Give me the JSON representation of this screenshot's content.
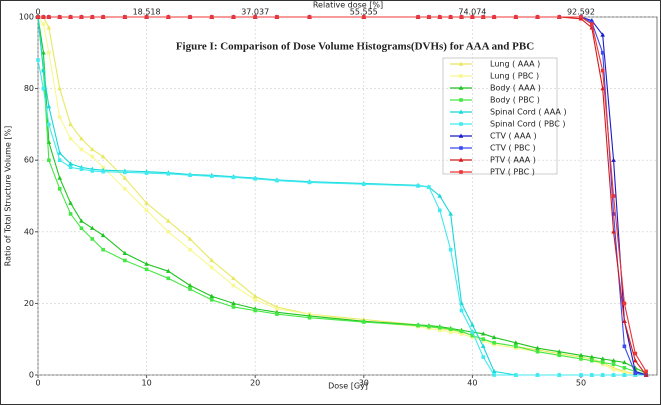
{
  "chart_data": {
    "type": "line",
    "title": "Figure I: Comparison of Dose Volume Histograms(DVHs) for AAA and PBC",
    "x_label": "Dose [Gy]",
    "y_label": "Ratio of Total Structure Volume [%]",
    "x2_label": "Relative dose [%]",
    "x": [
      0,
      0.5,
      1,
      2,
      3,
      4,
      5,
      6,
      8,
      10,
      12,
      14,
      16,
      18,
      20,
      22,
      25,
      30,
      35,
      36,
      37,
      38,
      39,
      40,
      41,
      42,
      44,
      46,
      48,
      50,
      51,
      52,
      53,
      54,
      55,
      56
    ],
    "xlim": [
      0,
      57
    ],
    "xticks": [
      0,
      10,
      20,
      30,
      40,
      50
    ],
    "x2lim": [
      0,
      105.555
    ],
    "x2ticks": [
      0,
      18.518,
      37.037,
      55.555,
      74.074,
      92.592
    ],
    "ylim": [
      0,
      100
    ],
    "yticks": [
      0,
      20,
      40,
      60,
      80,
      100
    ],
    "grid": true,
    "legend": "upper right",
    "series": [
      {
        "name": "Lung ( AAA )",
        "color": "#e8e860",
        "marker": "triangle",
        "values": [
          100,
          100,
          97,
          80,
          70,
          66,
          63,
          61,
          55,
          48,
          43,
          38,
          32,
          27,
          22,
          19,
          17,
          15.5,
          14,
          13.5,
          13,
          12.5,
          12,
          11,
          10,
          9,
          8,
          7,
          6,
          5,
          4.5,
          3.5,
          2,
          1,
          0.3,
          0
        ]
      },
      {
        "name": "Lung ( PBC )",
        "color": "#f8f890",
        "marker": "square",
        "values": [
          100,
          98,
          90,
          72,
          66,
          63,
          61,
          58,
          52,
          46,
          40,
          35,
          30,
          25,
          21,
          18.5,
          17,
          15,
          13.5,
          13,
          12.5,
          12,
          11.5,
          10.5,
          9.5,
          8.5,
          7.5,
          6.5,
          5.5,
          4.5,
          4,
          3,
          1.5,
          0.7,
          0.2,
          0
        ]
      },
      {
        "name": "Body ( AAA )",
        "color": "#22c422",
        "marker": "triangle",
        "values": [
          100,
          90,
          65,
          55,
          48,
          43,
          41,
          39,
          34,
          31,
          29,
          25,
          22,
          20,
          18.5,
          17.5,
          16.5,
          15,
          14,
          13.8,
          13.5,
          13,
          12.5,
          12,
          11.5,
          10.5,
          9,
          7.5,
          6.5,
          5.5,
          5,
          4.5,
          4,
          3.5,
          2,
          0.5
        ]
      },
      {
        "name": "Body ( PBC )",
        "color": "#44e844",
        "marker": "square",
        "values": [
          100,
          85,
          60,
          52,
          45,
          41,
          38,
          35,
          32,
          29.5,
          27,
          24,
          21,
          19,
          18,
          17,
          16,
          14.8,
          13.8,
          13.5,
          13.2,
          12.8,
          12.2,
          11,
          10,
          9,
          8,
          6.5,
          5.5,
          4.5,
          4,
          3.5,
          3,
          2,
          1,
          0.2
        ]
      },
      {
        "name": "Spinal Cord ( AAA )",
        "color": "#18d8d8",
        "marker": "triangle",
        "values": [
          100,
          85,
          75,
          62,
          59,
          58,
          57.5,
          57.2,
          57,
          56.8,
          56.5,
          56,
          55.8,
          55.4,
          55,
          54.5,
          54,
          53.5,
          53,
          52.5,
          50,
          45,
          20,
          14,
          8,
          1,
          0,
          0,
          0,
          0,
          0,
          0,
          0,
          0,
          0,
          0
        ]
      },
      {
        "name": "Spinal Cord ( PBC )",
        "color": "#40eaf0",
        "marker": "square",
        "values": [
          88,
          80,
          70,
          60,
          58,
          57.5,
          57,
          56.8,
          56.6,
          56.4,
          56.2,
          55.8,
          55.5,
          55.2,
          54.8,
          54.3,
          53.8,
          53.3,
          52.8,
          52.5,
          46,
          35,
          18,
          12,
          5,
          0,
          0,
          0,
          0,
          0,
          0,
          0,
          0,
          0,
          0,
          0
        ]
      },
      {
        "name": "CTV ( AAA )",
        "color": "#1a1ac8",
        "marker": "triangle",
        "values": [
          100,
          100,
          100,
          100,
          100,
          100,
          100,
          100,
          100,
          100,
          100,
          100,
          100,
          100,
          100,
          100,
          100,
          100,
          100,
          100,
          100,
          100,
          100,
          100,
          100,
          100,
          100,
          100,
          100,
          100,
          99,
          95,
          60,
          15,
          1,
          0
        ]
      },
      {
        "name": "CTV ( PBC )",
        "color": "#3a4aee",
        "marker": "square",
        "values": [
          100,
          100,
          100,
          100,
          100,
          100,
          100,
          100,
          100,
          100,
          100,
          100,
          100,
          100,
          100,
          100,
          100,
          100,
          100,
          100,
          100,
          100,
          100,
          100,
          100,
          100,
          100,
          100,
          100,
          100,
          98.5,
          90,
          45,
          8,
          0.5,
          0
        ]
      },
      {
        "name": "PTV ( AAA )",
        "color": "#d41a1a",
        "marker": "triangle",
        "values": [
          100,
          100,
          100,
          100,
          100,
          100,
          100,
          100,
          100,
          100,
          100,
          100,
          100,
          100,
          100,
          100,
          100,
          100,
          100,
          100,
          100,
          100,
          100,
          100,
          100,
          100,
          100,
          100,
          100,
          99.5,
          97,
          80,
          40,
          15,
          4,
          0
        ]
      },
      {
        "name": "PTV ( PBC )",
        "color": "#ee3434",
        "marker": "square",
        "values": [
          100,
          100,
          100,
          100,
          100,
          100,
          100,
          100,
          100,
          100,
          100,
          100,
          100,
          100,
          100,
          100,
          100,
          100,
          100,
          100,
          100,
          100,
          100,
          100,
          100,
          100,
          100,
          100,
          100,
          100,
          98,
          85,
          50,
          20,
          6,
          1
        ]
      }
    ]
  }
}
